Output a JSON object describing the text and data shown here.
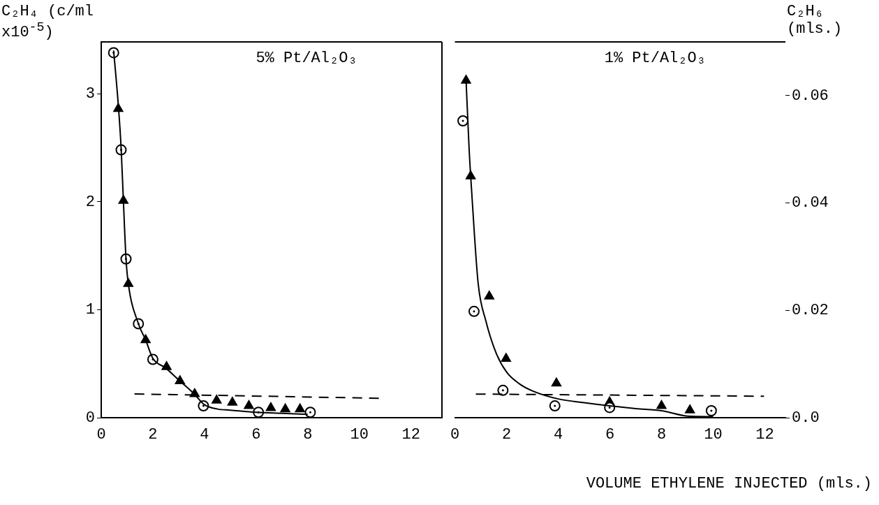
{
  "chart_data": [
    {
      "type": "scatter",
      "annotations": [
        "5% Pt/Al₂O₃"
      ],
      "ylabel": "C₂H₄ (c/ml x10$^{-5}$)",
      "xlim": [
        0,
        13.2
      ],
      "xticks": [
        0,
        2,
        4,
        6,
        8,
        10,
        12
      ],
      "ylim": [
        0,
        3.48
      ],
      "yticks": [
        0,
        1,
        2,
        3
      ],
      "grid": false,
      "legend": false,
      "series": [
        {
          "type": "line",
          "color": "#000000",
          "marker": "none",
          "line_style": "solid",
          "x": [
            0.48,
            0.66,
            0.77,
            0.86,
            0.96,
            1.05,
            1.44,
            1.72,
            2,
            2.5,
            3,
            3.6,
            4,
            4.5,
            5,
            6,
            7,
            8
          ],
          "values": [
            3.4,
            2.9,
            2.5,
            2.0,
            1.47,
            1.24,
            0.87,
            0.72,
            0.55,
            0.46,
            0.35,
            0.22,
            0.12,
            0.08,
            0.07,
            0.05,
            0.04,
            0.03
          ]
        },
        {
          "type": "line",
          "color": "#000000",
          "marker": "none",
          "line_style": "dashed",
          "x": [
            1.29,
            10.79
          ],
          "values": [
            0.22,
            0.18
          ]
        },
        {
          "type": "scatter",
          "color": "#000000",
          "marker": "circle",
          "x": [
            0.48,
            0.77,
            0.96,
            1.44,
            2.0,
            3.96,
            6.09,
            8.1
          ],
          "values": [
            3.38,
            2.48,
            1.47,
            0.87,
            0.54,
            0.11,
            0.05,
            0.05
          ]
        },
        {
          "type": "scatter",
          "color": "#000000",
          "marker": "triangle",
          "x": [
            0.66,
            0.86,
            1.05,
            1.72,
            2.53,
            3.05,
            3.62,
            4.47,
            5.08,
            5.72,
            6.57,
            7.13,
            7.7
          ],
          "values": [
            2.86,
            2.01,
            1.24,
            0.72,
            0.47,
            0.34,
            0.22,
            0.16,
            0.14,
            0.11,
            0.09,
            0.08,
            0.08
          ]
        }
      ]
    },
    {
      "type": "scatter",
      "annotations": [
        "1% Pt/Al₂O₃"
      ],
      "ylabel": "C₂H₆ (mls.)",
      "xlabel": "VOLUME ETHYLENE INJECTED (mls.)",
      "xlim": [
        0,
        12.8
      ],
      "xticks": [
        0,
        2,
        4,
        6,
        8,
        10,
        12
      ],
      "ylim": [
        0,
        0.07
      ],
      "yticks": [
        {
          "value": 0,
          "label": "0.0"
        },
        0.02,
        0.04,
        0.06
      ],
      "grid": false,
      "legend": false,
      "series": [
        {
          "type": "line",
          "color": "#000000",
          "marker": "none",
          "line_style": "solid",
          "x": [
            0.43,
            0.55,
            0.65,
            0.9,
            1.2,
            1.6,
            2,
            2.5,
            3,
            4,
            5,
            6,
            7,
            8,
            9,
            10
          ],
          "values": [
            0.063,
            0.05,
            0.042,
            0.025,
            0.018,
            0.012,
            0.0085,
            0.0063,
            0.005,
            0.0035,
            0.0028,
            0.0022,
            0.0017,
            0.0013,
            0.0003,
            0.0002
          ]
        },
        {
          "type": "line",
          "color": "#000000",
          "marker": "none",
          "line_style": "dashed",
          "x": [
            0.81,
            11.97
          ],
          "values": [
            0.0044,
            0.004
          ]
        },
        {
          "type": "scatter",
          "color": "#000000",
          "marker": "circle",
          "x": [
            0.31,
            0.74,
            1.86,
            3.87,
            5.99,
            9.93
          ],
          "values": [
            0.0553,
            0.0198,
            0.0051,
            0.0022,
            0.0019,
            0.0013
          ]
        },
        {
          "type": "scatter",
          "color": "#000000",
          "marker": "triangle",
          "x": [
            0.43,
            0.61,
            1.33,
            1.98,
            3.93,
            5.99,
            8.0,
            9.1
          ],
          "values": [
            0.0628,
            0.045,
            0.0226,
            0.011,
            0.0064,
            0.0029,
            0.0022,
            0.0014
          ]
        }
      ]
    }
  ]
}
